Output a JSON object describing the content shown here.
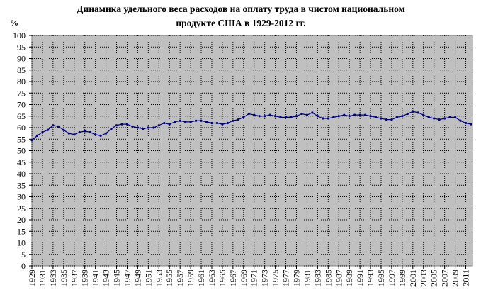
{
  "chart_data": {
    "type": "line",
    "title": [
      "Динамика удельного веса расходов на оплату труда в чистом национальном",
      "продукте США в 1929-2012 гг."
    ],
    "y_label": "%",
    "x": [
      1929,
      1930,
      1931,
      1932,
      1933,
      1934,
      1935,
      1936,
      1937,
      1938,
      1939,
      1940,
      1941,
      1942,
      1943,
      1944,
      1945,
      1946,
      1947,
      1948,
      1949,
      1950,
      1951,
      1952,
      1953,
      1954,
      1955,
      1956,
      1957,
      1958,
      1959,
      1960,
      1961,
      1962,
      1963,
      1964,
      1965,
      1966,
      1967,
      1968,
      1969,
      1970,
      1971,
      1972,
      1973,
      1974,
      1975,
      1976,
      1977,
      1978,
      1979,
      1980,
      1981,
      1982,
      1983,
      1984,
      1985,
      1986,
      1987,
      1988,
      1989,
      1990,
      1991,
      1992,
      1993,
      1994,
      1995,
      1996,
      1997,
      1998,
      1999,
      2000,
      2001,
      2002,
      2003,
      2004,
      2005,
      2006,
      2007,
      2008,
      2009,
      2010,
      2011,
      2012
    ],
    "values": [
      54.5,
      56.5,
      58,
      59,
      61,
      60.5,
      59,
      57.5,
      57,
      58,
      58.5,
      58,
      57,
      56.5,
      57.5,
      59.5,
      61,
      61.5,
      61.5,
      60.5,
      60,
      59.5,
      60,
      60,
      61,
      62,
      61.5,
      62.5,
      63,
      62.5,
      62.5,
      63,
      63,
      62.5,
      62,
      62,
      61.5,
      62,
      63,
      63.5,
      64.5,
      66,
      65.5,
      65,
      65,
      65.5,
      65,
      64.5,
      64.5,
      64.5,
      65,
      66,
      65.5,
      66.5,
      65,
      64,
      64,
      64.5,
      65,
      65.5,
      65,
      65.5,
      65.5,
      65.5,
      65,
      64.5,
      64,
      63.5,
      63.5,
      64.5,
      65,
      66,
      67,
      66.5,
      65.5,
      64.5,
      64,
      63.5,
      64,
      64.5,
      64.5,
      63,
      62,
      61.5
    ],
    "color": "#000080",
    "xlim": [
      1929,
      2012
    ],
    "xticks": [
      1929,
      1931,
      1933,
      1935,
      1937,
      1939,
      1941,
      1943,
      1945,
      1947,
      1949,
      1951,
      1953,
      1955,
      1957,
      1959,
      1961,
      1963,
      1965,
      1967,
      1969,
      1971,
      1973,
      1975,
      1977,
      1979,
      1981,
      1983,
      1985,
      1987,
      1989,
      1991,
      1993,
      1995,
      1997,
      1999,
      2001,
      2003,
      2005,
      2007,
      2009,
      2011
    ],
    "ylim": [
      0,
      100
    ],
    "yticks": [
      0,
      5,
      10,
      15,
      20,
      25,
      30,
      35,
      40,
      45,
      50,
      55,
      60,
      65,
      70,
      75,
      80,
      85,
      90,
      95,
      100
    ],
    "grid": true
  }
}
